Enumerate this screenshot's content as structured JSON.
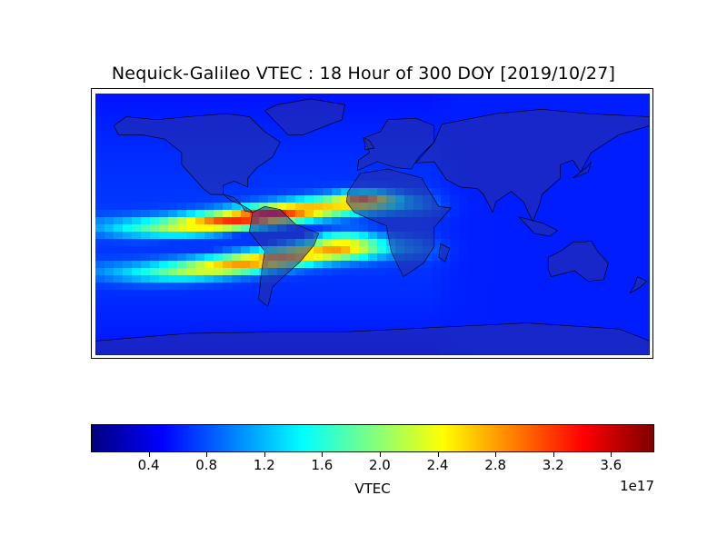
{
  "title": "Nequick-Galileo VTEC : 18 Hour of 300 DOY [2019/10/27]",
  "colorbar": {
    "label": "VTEC",
    "exponent": "1e17",
    "min": 0.0,
    "max": 3.9,
    "ticks": [
      "0.4",
      "0.8",
      "1.2",
      "1.6",
      "2.0",
      "2.4",
      "2.8",
      "3.2",
      "3.6"
    ],
    "tick_values": [
      0.4,
      0.8,
      1.2,
      1.6,
      2.0,
      2.4,
      2.8,
      3.2,
      3.6
    ],
    "colormap": "jet"
  },
  "map": {
    "projection": "equirectangular",
    "lon_range": [
      -180,
      180
    ],
    "lat_range": [
      -87.5,
      87.5
    ],
    "land_color": "#3a3fa8",
    "ocean_overlay": "#0000ff"
  }
}
